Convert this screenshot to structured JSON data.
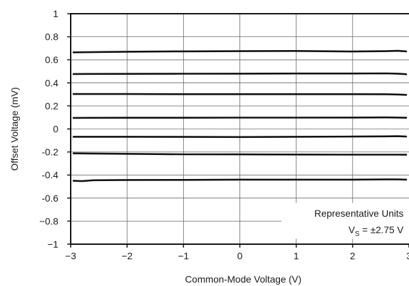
{
  "chart_data": {
    "type": "line",
    "title": "",
    "xlabel": "Common-Mode Voltage (V)",
    "ylabel": "Offset Voltage (mV)",
    "xlim": [
      -3,
      3
    ],
    "ylim": [
      -1,
      1
    ],
    "grid": true,
    "x_ticks": [
      -3,
      -2,
      -1,
      0,
      1,
      2,
      3
    ],
    "x_tick_labels": [
      "−3",
      "−2",
      "−1",
      "0",
      "1",
      "2",
      "3"
    ],
    "y_ticks": [
      1,
      0.8,
      0.6,
      0.4,
      0.2,
      0,
      -0.2,
      -0.4,
      -0.6,
      -0.8,
      -1
    ],
    "y_tick_labels": [
      "1",
      "0.8",
      "0.6",
      "0.4",
      "0.2",
      "0",
      "-0.2",
      "-0.4",
      "-0.6",
      "−0.8",
      "−1"
    ],
    "series": [
      {
        "x": [
          -2.95,
          -2,
          -1,
          0,
          1,
          2,
          2.6,
          2.8,
          2.95
        ],
        "y": [
          0.665,
          0.67,
          0.673,
          0.675,
          0.677,
          0.672,
          0.675,
          0.678,
          0.673
        ]
      },
      {
        "x": [
          -2.95,
          -2,
          -1,
          0,
          1,
          2,
          2.6,
          2.8,
          2.95
        ],
        "y": [
          0.477,
          0.478,
          0.479,
          0.48,
          0.481,
          0.481,
          0.482,
          0.48,
          0.475
        ]
      },
      {
        "x": [
          -2.95,
          -2,
          -1,
          0,
          1,
          2,
          2.6,
          2.8,
          2.95
        ],
        "y": [
          0.303,
          0.303,
          0.302,
          0.302,
          0.302,
          0.302,
          0.301,
          0.299,
          0.296
        ]
      },
      {
        "x": [
          -2.95,
          -2,
          -1,
          0,
          1,
          2,
          2.6,
          2.8,
          2.95
        ],
        "y": [
          0.096,
          0.097,
          0.097,
          0.098,
          0.098,
          0.099,
          0.1,
          0.099,
          0.097
        ]
      },
      {
        "x": [
          -2.95,
          -2,
          -1,
          0,
          1,
          2,
          2.6,
          2.8,
          2.95
        ],
        "y": [
          -0.068,
          -0.068,
          -0.069,
          -0.07,
          -0.068,
          -0.066,
          -0.064,
          -0.063,
          -0.066
        ]
      },
      {
        "x": [
          -2.95,
          -2,
          -1,
          0,
          1,
          2,
          2.6,
          2.8,
          2.95
        ],
        "y": [
          -0.212,
          -0.216,
          -0.22,
          -0.221,
          -0.222,
          -0.223,
          -0.223,
          -0.223,
          -0.224
        ]
      },
      {
        "x": [
          -2.95,
          -2.8,
          -2.6,
          -2,
          -1,
          0,
          1,
          2,
          2.6,
          2.8,
          2.95
        ],
        "y": [
          -0.45,
          -0.453,
          -0.445,
          -0.443,
          -0.442,
          -0.44,
          -0.44,
          -0.44,
          -0.438,
          -0.438,
          -0.44
        ]
      }
    ],
    "annotations": {
      "line1": "Representative Units",
      "vs_prefix": "V",
      "vs_sub": "S",
      "vs_suffix": " = ±2.75 V"
    },
    "line_color": "#111111",
    "grid_color": "#666666"
  }
}
